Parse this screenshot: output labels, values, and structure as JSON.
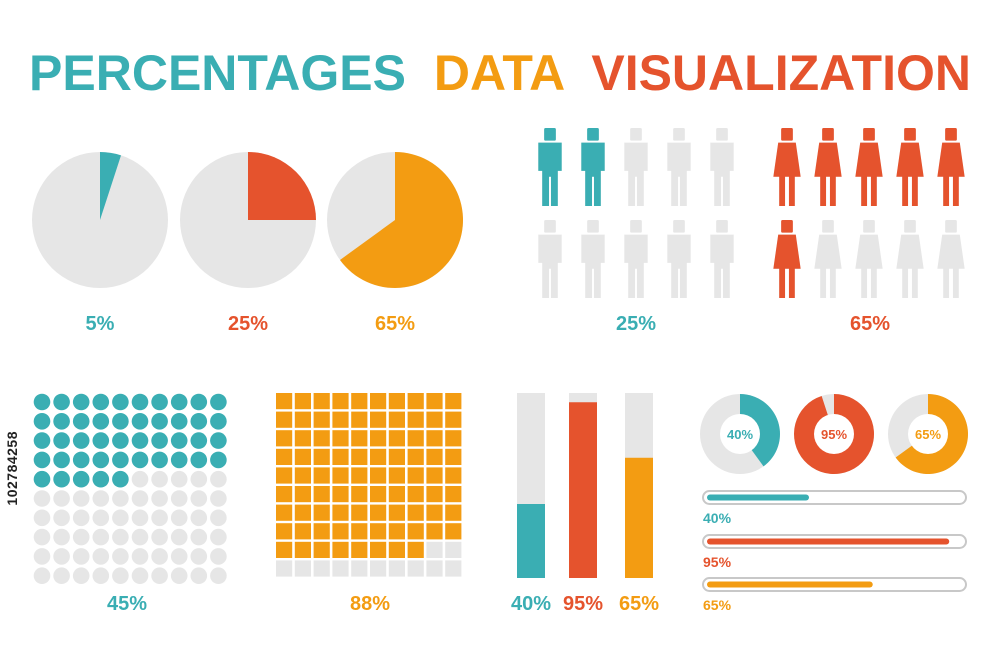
{
  "title": {
    "words": [
      {
        "text": "PERCENTAGES",
        "color": "#3aaeb3"
      },
      {
        "text": "DATA",
        "color": "#f39c12"
      },
      {
        "text": "VISUALIZATION",
        "color": "#e5532d"
      }
    ]
  },
  "side_id": "102784258",
  "colors": {
    "teal": "#3aaeb3",
    "orange": "#f39c12",
    "red": "#e5532d",
    "gray": "#e6e6e6"
  },
  "chart_data": [
    {
      "type": "pie",
      "slices": [
        {
          "label": "5%",
          "value": 5,
          "color": "#3aaeb3"
        },
        {
          "label": "25%",
          "value": 25,
          "color": "#e5532d"
        },
        {
          "label": "65%",
          "value": 65,
          "color": "#f39c12"
        }
      ]
    },
    {
      "type": "pictograph",
      "icon": "man-icon",
      "count": 10,
      "value": 25,
      "label": "25%",
      "color": "#3aaeb3"
    },
    {
      "type": "pictograph",
      "icon": "woman-icon",
      "count": 10,
      "value": 65,
      "label": "65%",
      "color": "#e5532d"
    },
    {
      "type": "dot-grid",
      "rows": 10,
      "cols": 10,
      "value": 45,
      "label": "45%",
      "color": "#3aaeb3"
    },
    {
      "type": "square-grid",
      "rows": 10,
      "cols": 10,
      "value": 88,
      "label": "88%",
      "color": "#f39c12"
    },
    {
      "type": "bar",
      "ylim": [
        0,
        100
      ],
      "bars": [
        {
          "label": "40%",
          "value": 40,
          "color": "#3aaeb3"
        },
        {
          "label": "95%",
          "value": 95,
          "color": "#e5532d"
        },
        {
          "label": "65%",
          "value": 65,
          "color": "#f39c12"
        }
      ]
    },
    {
      "type": "donut",
      "rings": [
        {
          "label": "40%",
          "value": 40,
          "color": "#3aaeb3"
        },
        {
          "label": "95%",
          "value": 95,
          "color": "#e5532d"
        },
        {
          "label": "65%",
          "value": 65,
          "color": "#f39c12"
        }
      ]
    },
    {
      "type": "progress",
      "bars": [
        {
          "label": "40%",
          "value": 40,
          "color": "#3aaeb3"
        },
        {
          "label": "95%",
          "value": 95,
          "color": "#e5532d"
        },
        {
          "label": "65%",
          "value": 65,
          "color": "#f39c12"
        }
      ]
    }
  ]
}
